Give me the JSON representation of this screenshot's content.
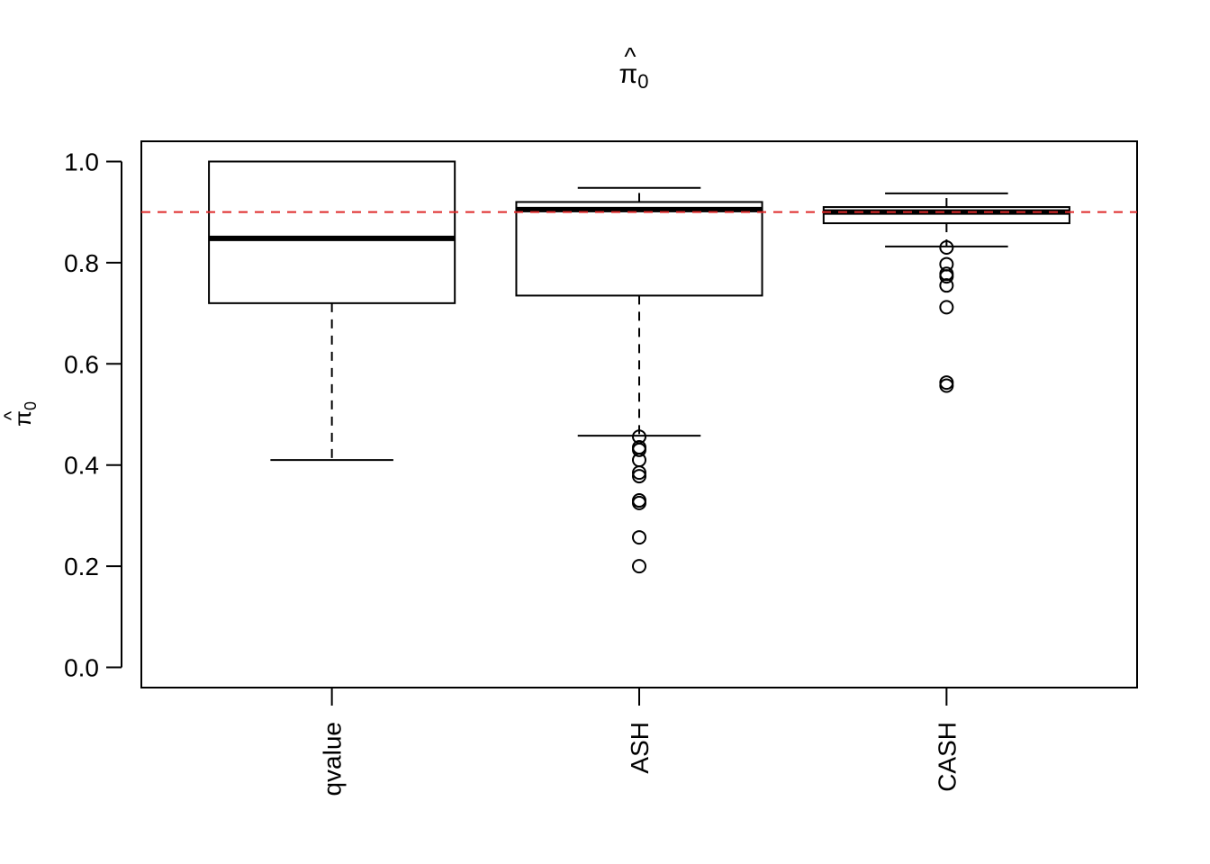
{
  "chart_data": {
    "type": "boxplot",
    "title": "π",
    "title_subscript": "0",
    "ylabel": "π",
    "ylabel_subscript": "0",
    "xlabel": "",
    "ylim": [
      -0.04,
      1.04
    ],
    "yticks": [
      "0.0",
      "0.2",
      "0.4",
      "0.6",
      "0.8",
      "1.0"
    ],
    "ytick_values": [
      0.0,
      0.2,
      0.4,
      0.6,
      0.8,
      1.0
    ],
    "categories": [
      "qvalue",
      "ASH",
      "CASH"
    ],
    "reference_line": {
      "y": 0.9,
      "color": "#DF2A2A",
      "style": "dashed"
    },
    "boxes": [
      {
        "name": "qvalue",
        "whisker_low": 0.41,
        "q1": 0.72,
        "median": 0.848,
        "q3": 1.0,
        "whisker_high": 1.0,
        "outliers": []
      },
      {
        "name": "ASH",
        "whisker_low": 0.458,
        "q1": 0.735,
        "median": 0.905,
        "q3": 0.92,
        "whisker_high": 0.948,
        "outliers": [
          0.456,
          0.435,
          0.43,
          0.41,
          0.385,
          0.378,
          0.33,
          0.325,
          0.257,
          0.2
        ]
      },
      {
        "name": "CASH",
        "whisker_low": 0.832,
        "q1": 0.878,
        "median": 0.9,
        "q3": 0.91,
        "whisker_high": 0.937,
        "outliers": [
          0.83,
          0.797,
          0.778,
          0.773,
          0.755,
          0.712,
          0.563,
          0.557
        ]
      }
    ],
    "grid": false,
    "colors": {
      "box": "#000000",
      "reference": "#DF2A2A"
    }
  }
}
